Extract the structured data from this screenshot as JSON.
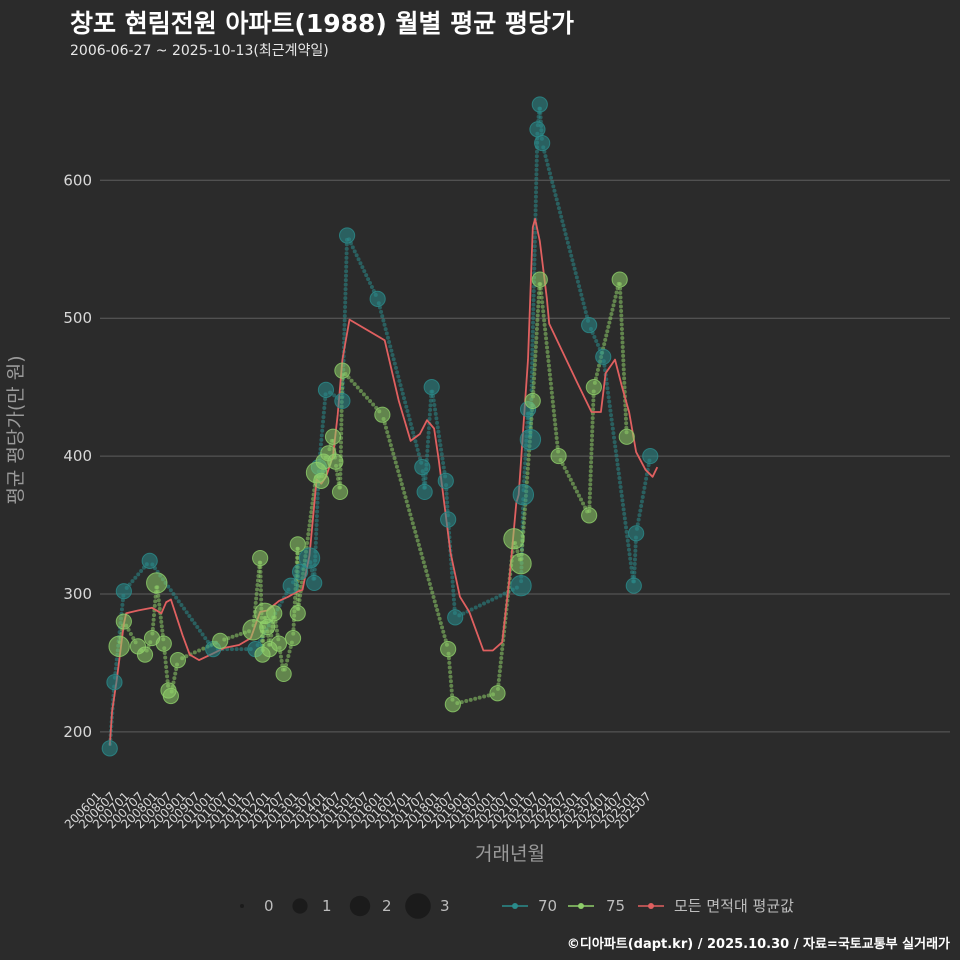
{
  "header": {
    "title": "창포 현림전원 아파트(1988) 월별 평균 평당가",
    "subtitle": "2006-06-27 ~ 2025-10-13(최근계약일)"
  },
  "footer": {
    "credit": "©디아파트(dapt.kr) / 2025.10.30 / 자료=국토교통부 실거래가"
  },
  "colors": {
    "background": "#2b2b2b",
    "grid": "#5e5e5e",
    "series_70": "#2a8c8c",
    "series_75": "#8fcf6a",
    "avg": "#e06060"
  },
  "chart_data": {
    "type": "line",
    "title": "창포 현림전원 아파트(1988) 월별 평균 평당가",
    "xlabel": "거래년월",
    "ylabel": "평균 평당가(만 원)",
    "ylim": [
      160,
      680
    ],
    "yticks": [
      200,
      300,
      400,
      500,
      600
    ],
    "xticks": [
      "200601",
      "200607",
      "200701",
      "200707",
      "200801",
      "200807",
      "200901",
      "200907",
      "201001",
      "201007",
      "201101",
      "201107",
      "201201",
      "201207",
      "201301",
      "201307",
      "201401",
      "201407",
      "201501",
      "201507",
      "201601",
      "201607",
      "201701",
      "201707",
      "201801",
      "201807",
      "201901",
      "201907",
      "202001",
      "202007",
      "202101",
      "202107",
      "202201",
      "202207",
      "202301",
      "202307",
      "202401",
      "202407",
      "202501",
      "202507"
    ],
    "size_legend": {
      "labels": [
        "0",
        "1",
        "2",
        "3"
      ]
    },
    "series": [
      {
        "name": "70",
        "points": [
          {
            "x": "200606",
            "y": 188,
            "n": 1
          },
          {
            "x": "200608",
            "y": 236,
            "n": 1
          },
          {
            "x": "200612",
            "y": 302,
            "n": 1
          },
          {
            "x": "200711",
            "y": 324,
            "n": 1
          },
          {
            "x": "201002",
            "y": 260,
            "n": 1
          },
          {
            "x": "201108",
            "y": 260,
            "n": 1
          },
          {
            "x": "201211",
            "y": 306,
            "n": 1
          },
          {
            "x": "201303",
            "y": 316,
            "n": 1
          },
          {
            "x": "201307",
            "y": 326,
            "n": 2
          },
          {
            "x": "201309",
            "y": 308,
            "n": 1
          },
          {
            "x": "201311",
            "y": 392,
            "n": 1
          },
          {
            "x": "201402",
            "y": 448,
            "n": 1
          },
          {
            "x": "201409",
            "y": 440,
            "n": 1
          },
          {
            "x": "201411",
            "y": 560,
            "n": 1
          },
          {
            "x": "201512",
            "y": 514,
            "n": 1
          },
          {
            "x": "201707",
            "y": 392,
            "n": 1
          },
          {
            "x": "201708",
            "y": 374,
            "n": 1
          },
          {
            "x": "201711",
            "y": 450,
            "n": 1
          },
          {
            "x": "201805",
            "y": 382,
            "n": 1
          },
          {
            "x": "201806",
            "y": 354,
            "n": 1
          },
          {
            "x": "201809",
            "y": 283,
            "n": 1
          },
          {
            "x": "202101",
            "y": 306,
            "n": 2
          },
          {
            "x": "202102",
            "y": 372,
            "n": 2
          },
          {
            "x": "202104",
            "y": 434,
            "n": 1
          },
          {
            "x": "202105",
            "y": 412,
            "n": 2
          },
          {
            "x": "202108",
            "y": 637,
            "n": 1
          },
          {
            "x": "202109",
            "y": 655,
            "n": 1
          },
          {
            "x": "202110",
            "y": 627,
            "n": 1
          },
          {
            "x": "202306",
            "y": 495,
            "n": 1
          },
          {
            "x": "202312",
            "y": 472,
            "n": 1
          },
          {
            "x": "202501",
            "y": 306,
            "n": 1
          },
          {
            "x": "202502",
            "y": 344,
            "n": 1
          },
          {
            "x": "202508",
            "y": 400,
            "n": 1
          }
        ]
      },
      {
        "name": "75",
        "points": [
          {
            "x": "200610",
            "y": 262,
            "n": 2
          },
          {
            "x": "200612",
            "y": 280,
            "n": 1
          },
          {
            "x": "200706",
            "y": 262,
            "n": 1
          },
          {
            "x": "200709",
            "y": 256,
            "n": 1
          },
          {
            "x": "200712",
            "y": 268,
            "n": 1
          },
          {
            "x": "200802",
            "y": 308,
            "n": 2
          },
          {
            "x": "200805",
            "y": 264,
            "n": 1
          },
          {
            "x": "200807",
            "y": 230,
            "n": 1
          },
          {
            "x": "200808",
            "y": 226,
            "n": 1
          },
          {
            "x": "200811",
            "y": 252,
            "n": 1
          },
          {
            "x": "201005",
            "y": 266,
            "n": 1
          },
          {
            "x": "201107",
            "y": 274,
            "n": 2
          },
          {
            "x": "201110",
            "y": 326,
            "n": 1
          },
          {
            "x": "201111",
            "y": 256,
            "n": 1
          },
          {
            "x": "201112",
            "y": 286,
            "n": 2
          },
          {
            "x": "201201",
            "y": 276,
            "n": 1
          },
          {
            "x": "201202",
            "y": 260,
            "n": 1
          },
          {
            "x": "201204",
            "y": 286,
            "n": 1
          },
          {
            "x": "201206",
            "y": 264,
            "n": 1
          },
          {
            "x": "201208",
            "y": 242,
            "n": 1
          },
          {
            "x": "201212",
            "y": 268,
            "n": 1
          },
          {
            "x": "201302",
            "y": 336,
            "n": 1
          },
          {
            "x": "201302",
            "y": 286,
            "n": 1
          },
          {
            "x": "201310",
            "y": 388,
            "n": 2
          },
          {
            "x": "201312",
            "y": 382,
            "n": 1
          },
          {
            "x": "201401",
            "y": 396,
            "n": 1
          },
          {
            "x": "201403",
            "y": 402,
            "n": 1
          },
          {
            "x": "201405",
            "y": 414,
            "n": 1
          },
          {
            "x": "201406",
            "y": 396,
            "n": 1
          },
          {
            "x": "201408",
            "y": 374,
            "n": 1
          },
          {
            "x": "201409",
            "y": 462,
            "n": 1
          },
          {
            "x": "201602",
            "y": 430,
            "n": 1
          },
          {
            "x": "201806",
            "y": 260,
            "n": 1
          },
          {
            "x": "201808",
            "y": 220,
            "n": 1
          },
          {
            "x": "202003",
            "y": 228,
            "n": 1
          },
          {
            "x": "202010",
            "y": 340,
            "n": 2
          },
          {
            "x": "202101",
            "y": 322,
            "n": 2
          },
          {
            "x": "202106",
            "y": 440,
            "n": 1
          },
          {
            "x": "202109",
            "y": 528,
            "n": 1
          },
          {
            "x": "202205",
            "y": 400,
            "n": 1
          },
          {
            "x": "202306",
            "y": 357,
            "n": 1
          },
          {
            "x": "202308",
            "y": 450,
            "n": 1
          },
          {
            "x": "202407",
            "y": 528,
            "n": 1
          },
          {
            "x": "202410",
            "y": 414,
            "n": 1
          }
        ]
      },
      {
        "name": "모든 면적대 평균값",
        "points": [
          {
            "x": "200606",
            "y": 190
          },
          {
            "x": "200607",
            "y": 215
          },
          {
            "x": "200609",
            "y": 238
          },
          {
            "x": "200612",
            "y": 278
          },
          {
            "x": "200701",
            "y": 286
          },
          {
            "x": "200706",
            "y": 288
          },
          {
            "x": "200712",
            "y": 290
          },
          {
            "x": "200804",
            "y": 286
          },
          {
            "x": "200806",
            "y": 294
          },
          {
            "x": "200808",
            "y": 296
          },
          {
            "x": "200901",
            "y": 270
          },
          {
            "x": "200904",
            "y": 256
          },
          {
            "x": "200908",
            "y": 252
          },
          {
            "x": "201001",
            "y": 256
          },
          {
            "x": "201007",
            "y": 261
          },
          {
            "x": "201101",
            "y": 263
          },
          {
            "x": "201106",
            "y": 268
          },
          {
            "x": "201110",
            "y": 287
          },
          {
            "x": "201201",
            "y": 288
          },
          {
            "x": "201206",
            "y": 295
          },
          {
            "x": "201210",
            "y": 298
          },
          {
            "x": "201301",
            "y": 301
          },
          {
            "x": "201304",
            "y": 303
          },
          {
            "x": "201307",
            "y": 328
          },
          {
            "x": "201310",
            "y": 383
          },
          {
            "x": "201312",
            "y": 380
          },
          {
            "x": "201402",
            "y": 385
          },
          {
            "x": "201405",
            "y": 400
          },
          {
            "x": "201407",
            "y": 430
          },
          {
            "x": "201409",
            "y": 470
          },
          {
            "x": "201412",
            "y": 499
          },
          {
            "x": "201603",
            "y": 484
          },
          {
            "x": "201609",
            "y": 440
          },
          {
            "x": "201702",
            "y": 411
          },
          {
            "x": "201706",
            "y": 416
          },
          {
            "x": "201709",
            "y": 426
          },
          {
            "x": "201712",
            "y": 420
          },
          {
            "x": "201802",
            "y": 397
          },
          {
            "x": "201807",
            "y": 330
          },
          {
            "x": "201811",
            "y": 298
          },
          {
            "x": "201903",
            "y": 287
          },
          {
            "x": "201909",
            "y": 259
          },
          {
            "x": "202001",
            "y": 259
          },
          {
            "x": "202005",
            "y": 265
          },
          {
            "x": "202008",
            "y": 310
          },
          {
            "x": "202011",
            "y": 366
          },
          {
            "x": "202012",
            "y": 372
          },
          {
            "x": "202104",
            "y": 470
          },
          {
            "x": "202106",
            "y": 566
          },
          {
            "x": "202107",
            "y": 572
          },
          {
            "x": "202109",
            "y": 556
          },
          {
            "x": "202112",
            "y": 514
          },
          {
            "x": "202201",
            "y": 496
          },
          {
            "x": "202301",
            "y": 453
          },
          {
            "x": "202307",
            "y": 432
          },
          {
            "x": "202311",
            "y": 432
          },
          {
            "x": "202401",
            "y": 460
          },
          {
            "x": "202405",
            "y": 470
          },
          {
            "x": "202408",
            "y": 450
          },
          {
            "x": "202411",
            "y": 432
          },
          {
            "x": "202502",
            "y": 403
          },
          {
            "x": "202506",
            "y": 390
          },
          {
            "x": "202509",
            "y": 385
          },
          {
            "x": "202511",
            "y": 392
          }
        ]
      }
    ]
  }
}
